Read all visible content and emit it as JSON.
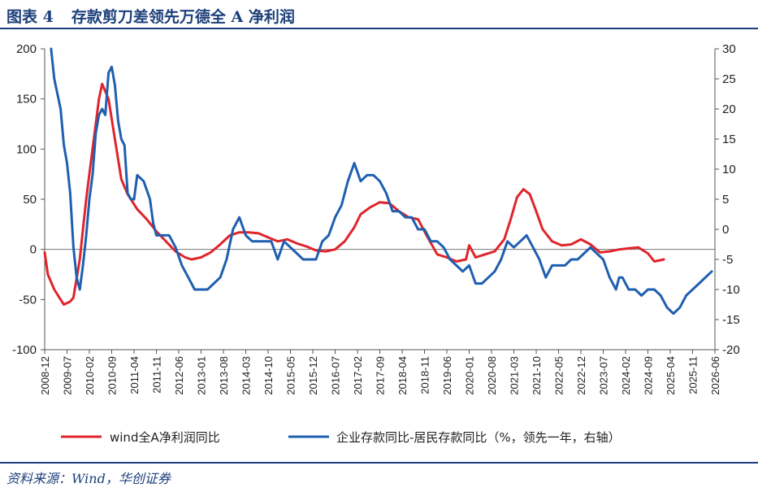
{
  "header": {
    "figure_no": "图表 4",
    "title": "存款剪刀差领先万德全 A 净利润"
  },
  "footer": {
    "source": "资料来源：Wind，华创证券"
  },
  "chart_data": {
    "type": "line",
    "title": "存款剪刀差领先万德全 A 净利润",
    "xlabel": "",
    "ylabel": "",
    "x_ticks": [
      "2008-12",
      "2009-07",
      "2010-02",
      "2010-09",
      "2011-04",
      "2011-11",
      "2012-06",
      "2013-01",
      "2013-08",
      "2014-03",
      "2014-10",
      "2015-05",
      "2015-12",
      "2016-07",
      "2017-02",
      "2017-09",
      "2018-04",
      "2018-11",
      "2019-06",
      "2020-01",
      "2020-08",
      "2021-03",
      "2021-10",
      "2022-05",
      "2022-12",
      "2023-07",
      "2024-02",
      "2024-09",
      "2025-04",
      "2025-11",
      "2026-06"
    ],
    "y_left": {
      "min": -100,
      "max": 200,
      "ticks": [
        -100,
        -50,
        0,
        50,
        100,
        150,
        200
      ]
    },
    "y_right": {
      "min": -20,
      "max": 30,
      "ticks": [
        -20,
        -15,
        -10,
        -5,
        0,
        5,
        10,
        15,
        20,
        25,
        30
      ]
    },
    "grid": false,
    "legend": "bottom",
    "series": [
      {
        "name": "wind全A净利润同比",
        "axis": "left",
        "color": "#e0242b",
        "points": [
          [
            "2008-12",
            -3
          ],
          [
            "2009-01",
            -25
          ],
          [
            "2009-03",
            -40
          ],
          [
            "2009-05",
            -50
          ],
          [
            "2009-06",
            -55
          ],
          [
            "2009-08",
            -52
          ],
          [
            "2009-09",
            -48
          ],
          [
            "2009-11",
            -10
          ],
          [
            "2009-12",
            20
          ],
          [
            "2010-01",
            50
          ],
          [
            "2010-03",
            100
          ],
          [
            "2010-05",
            150
          ],
          [
            "2010-06",
            165
          ],
          [
            "2010-08",
            150
          ],
          [
            "2010-10",
            110
          ],
          [
            "2010-12",
            70
          ],
          [
            "2011-02",
            55
          ],
          [
            "2011-05",
            40
          ],
          [
            "2011-08",
            30
          ],
          [
            "2011-11",
            18
          ],
          [
            "2012-02",
            8
          ],
          [
            "2012-05",
            -2
          ],
          [
            "2012-08",
            -8
          ],
          [
            "2012-10",
            -10
          ],
          [
            "2013-01",
            -8
          ],
          [
            "2013-04",
            -3
          ],
          [
            "2013-07",
            5
          ],
          [
            "2013-10",
            14
          ],
          [
            "2014-01",
            17
          ],
          [
            "2014-04",
            17
          ],
          [
            "2014-07",
            16
          ],
          [
            "2014-10",
            12
          ],
          [
            "2015-01",
            8
          ],
          [
            "2015-04",
            10
          ],
          [
            "2015-07",
            6
          ],
          [
            "2015-10",
            3
          ],
          [
            "2016-01",
            -1
          ],
          [
            "2016-04",
            -2
          ],
          [
            "2016-07",
            0
          ],
          [
            "2016-10",
            8
          ],
          [
            "2017-01",
            22
          ],
          [
            "2017-03",
            35
          ],
          [
            "2017-06",
            42
          ],
          [
            "2017-09",
            47
          ],
          [
            "2017-12",
            46
          ],
          [
            "2018-03",
            38
          ],
          [
            "2018-06",
            32
          ],
          [
            "2018-09",
            30
          ],
          [
            "2018-12",
            12
          ],
          [
            "2019-03",
            -5
          ],
          [
            "2019-06",
            -8
          ],
          [
            "2019-09",
            -12
          ],
          [
            "2019-12",
            -10
          ],
          [
            "2020-01",
            4
          ],
          [
            "2020-03",
            -8
          ],
          [
            "2020-06",
            -5
          ],
          [
            "2020-09",
            -2
          ],
          [
            "2020-12",
            10
          ],
          [
            "2021-02",
            30
          ],
          [
            "2021-04",
            52
          ],
          [
            "2021-06",
            60
          ],
          [
            "2021-08",
            55
          ],
          [
            "2021-10",
            38
          ],
          [
            "2021-12",
            20
          ],
          [
            "2022-03",
            8
          ],
          [
            "2022-06",
            4
          ],
          [
            "2022-09",
            5
          ],
          [
            "2022-12",
            10
          ],
          [
            "2023-03",
            5
          ],
          [
            "2023-06",
            -3
          ],
          [
            "2023-09",
            -2
          ],
          [
            "2023-12",
            0
          ],
          [
            "2024-03",
            1
          ],
          [
            "2024-06",
            2
          ],
          [
            "2024-09",
            -4
          ],
          [
            "2024-11",
            -12
          ],
          [
            "2025-02",
            -10
          ]
        ]
      },
      {
        "name": "企业存款同比-居民存款同比（%，领先一年，右轴）",
        "axis": "right",
        "color": "#1f5fb0",
        "points": [
          [
            "2009-02",
            30
          ],
          [
            "2009-03",
            25
          ],
          [
            "2009-05",
            20
          ],
          [
            "2009-06",
            14
          ],
          [
            "2009-07",
            11
          ],
          [
            "2009-08",
            6
          ],
          [
            "2009-09",
            -3
          ],
          [
            "2009-10",
            -8
          ],
          [
            "2009-11",
            -10
          ],
          [
            "2009-12",
            -6
          ],
          [
            "2010-01",
            -1
          ],
          [
            "2010-02",
            5
          ],
          [
            "2010-03",
            9
          ],
          [
            "2010-04",
            16
          ],
          [
            "2010-05",
            19
          ],
          [
            "2010-06",
            20
          ],
          [
            "2010-07",
            19
          ],
          [
            "2010-08",
            26
          ],
          [
            "2010-09",
            27
          ],
          [
            "2010-10",
            24
          ],
          [
            "2010-11",
            18
          ],
          [
            "2010-12",
            15
          ],
          [
            "2011-01",
            14
          ],
          [
            "2011-02",
            6
          ],
          [
            "2011-03",
            5
          ],
          [
            "2011-04",
            5
          ],
          [
            "2011-05",
            9
          ],
          [
            "2011-07",
            8
          ],
          [
            "2011-09",
            5
          ],
          [
            "2011-10",
            1
          ],
          [
            "2011-11",
            -1
          ],
          [
            "2012-01",
            -1
          ],
          [
            "2012-03",
            -1
          ],
          [
            "2012-05",
            -3
          ],
          [
            "2012-07",
            -6
          ],
          [
            "2012-09",
            -8
          ],
          [
            "2012-11",
            -10
          ],
          [
            "2013-01",
            -10
          ],
          [
            "2013-03",
            -10
          ],
          [
            "2013-05",
            -9
          ],
          [
            "2013-07",
            -8
          ],
          [
            "2013-09",
            -5
          ],
          [
            "2013-11",
            0
          ],
          [
            "2014-01",
            2
          ],
          [
            "2014-03",
            -1
          ],
          [
            "2014-05",
            -2
          ],
          [
            "2014-07",
            -2
          ],
          [
            "2014-09",
            -2
          ],
          [
            "2014-11",
            -2
          ],
          [
            "2015-01",
            -5
          ],
          [
            "2015-03",
            -2
          ],
          [
            "2015-05",
            -3
          ],
          [
            "2015-07",
            -4
          ],
          [
            "2015-09",
            -5
          ],
          [
            "2015-11",
            -5
          ],
          [
            "2016-01",
            -5
          ],
          [
            "2016-03",
            -2
          ],
          [
            "2016-05",
            -1
          ],
          [
            "2016-07",
            2
          ],
          [
            "2016-09",
            4
          ],
          [
            "2016-11",
            8
          ],
          [
            "2017-01",
            11
          ],
          [
            "2017-03",
            8
          ],
          [
            "2017-05",
            9
          ],
          [
            "2017-07",
            9
          ],
          [
            "2017-09",
            8
          ],
          [
            "2017-11",
            6
          ],
          [
            "2018-01",
            3
          ],
          [
            "2018-03",
            3
          ],
          [
            "2018-05",
            2
          ],
          [
            "2018-07",
            2
          ],
          [
            "2018-09",
            0
          ],
          [
            "2018-11",
            0
          ],
          [
            "2019-01",
            -2
          ],
          [
            "2019-03",
            -2
          ],
          [
            "2019-05",
            -3
          ],
          [
            "2019-07",
            -5
          ],
          [
            "2019-09",
            -6
          ],
          [
            "2019-11",
            -7
          ],
          [
            "2020-01",
            -6
          ],
          [
            "2020-03",
            -9
          ],
          [
            "2020-05",
            -9
          ],
          [
            "2020-07",
            -8
          ],
          [
            "2020-09",
            -7
          ],
          [
            "2020-11",
            -5
          ],
          [
            "2021-01",
            -2
          ],
          [
            "2021-03",
            -3
          ],
          [
            "2021-05",
            -2
          ],
          [
            "2021-07",
            -1
          ],
          [
            "2021-09",
            -3
          ],
          [
            "2021-11",
            -5
          ],
          [
            "2022-01",
            -8
          ],
          [
            "2022-03",
            -6
          ],
          [
            "2022-05",
            -6
          ],
          [
            "2022-07",
            -6
          ],
          [
            "2022-09",
            -5
          ],
          [
            "2022-11",
            -5
          ],
          [
            "2023-01",
            -4
          ],
          [
            "2023-03",
            -3
          ],
          [
            "2023-05",
            -4
          ],
          [
            "2023-07",
            -5
          ],
          [
            "2023-09",
            -8
          ],
          [
            "2023-11",
            -10
          ],
          [
            "2023-12",
            -8
          ],
          [
            "2024-01",
            -8
          ],
          [
            "2024-03",
            -10
          ],
          [
            "2024-05",
            -10
          ],
          [
            "2024-07",
            -11
          ],
          [
            "2024-09",
            -10
          ],
          [
            "2024-11",
            -10
          ],
          [
            "2025-01",
            -11
          ],
          [
            "2025-03",
            -13
          ],
          [
            "2025-05",
            -14
          ],
          [
            "2025-07",
            -13
          ],
          [
            "2025-09",
            -11
          ],
          [
            "2025-11",
            -10
          ],
          [
            "2026-01",
            -9
          ],
          [
            "2026-03",
            -8
          ],
          [
            "2026-05",
            -7
          ]
        ]
      }
    ]
  }
}
